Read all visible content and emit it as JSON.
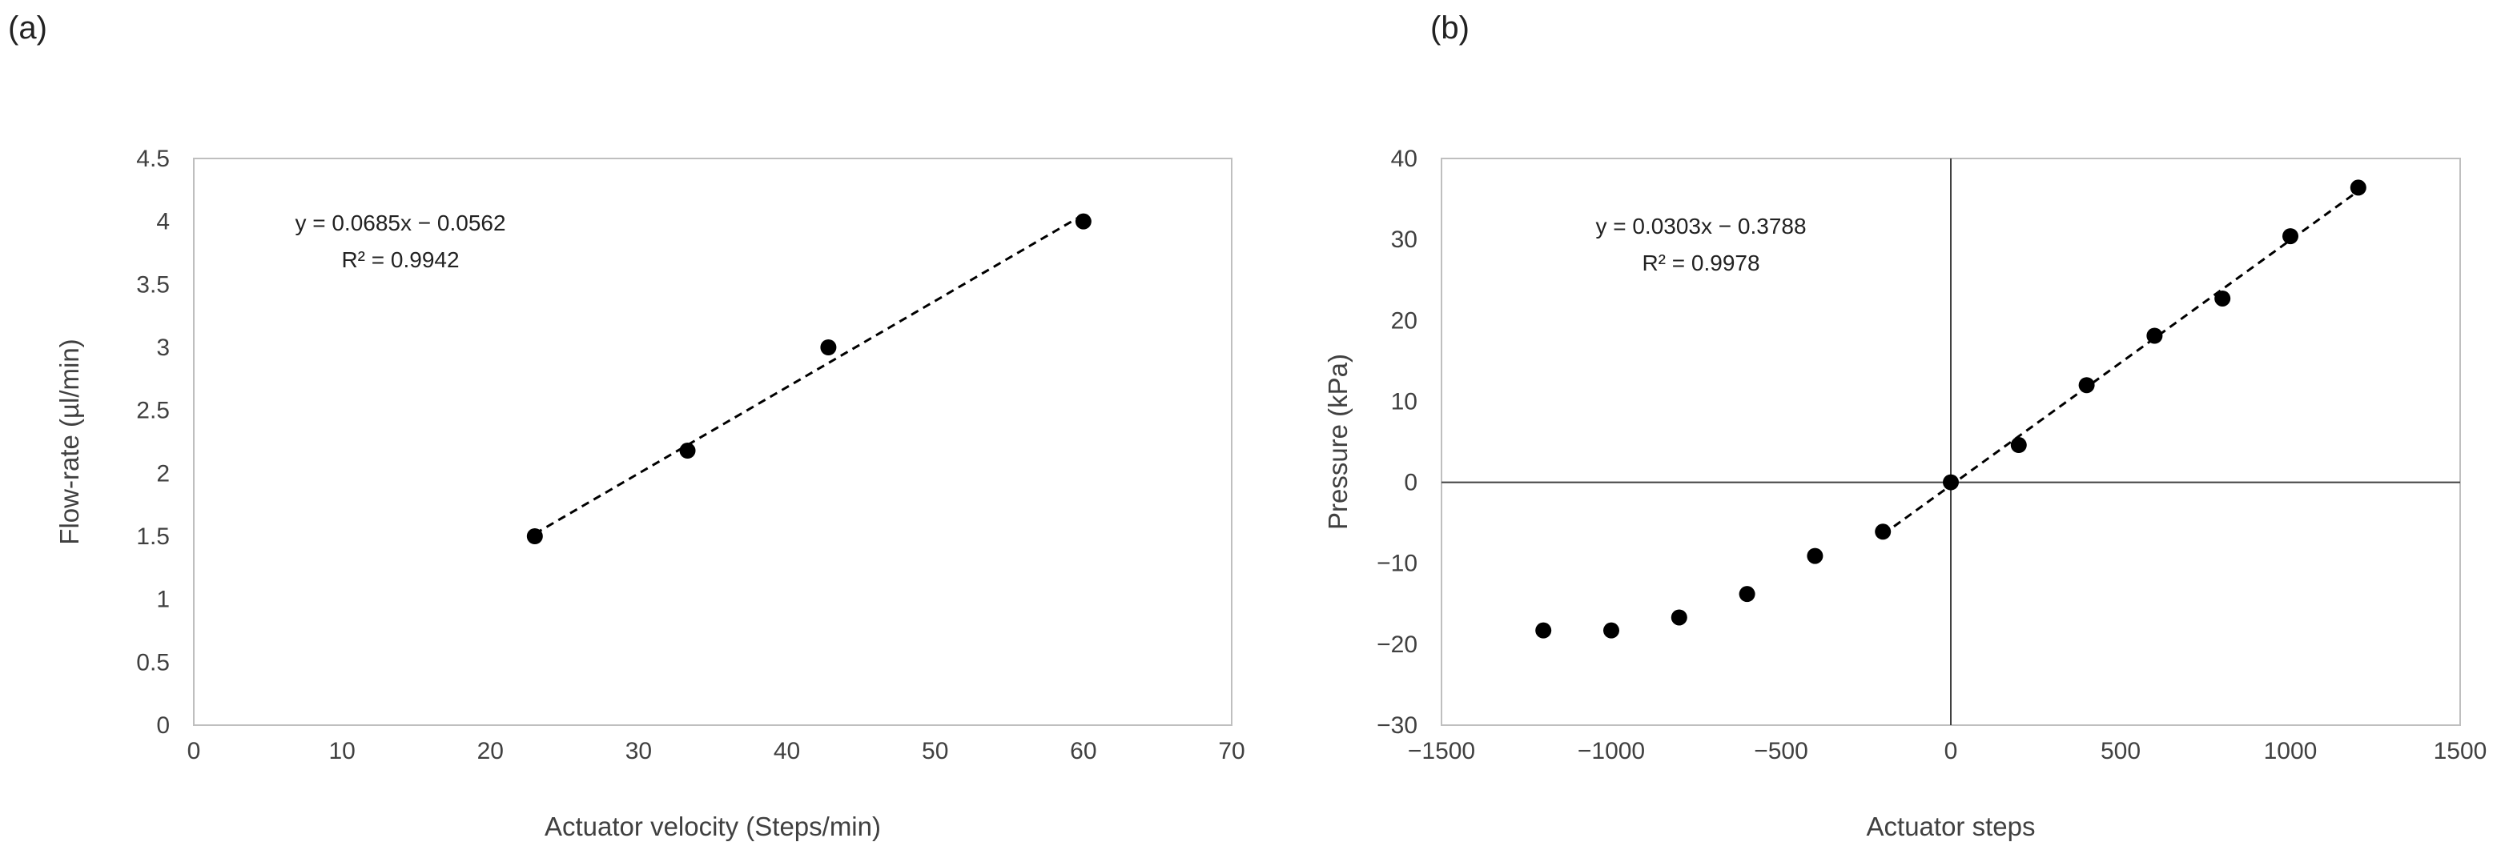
{
  "chart_data": [
    {
      "panel_label": "(a)",
      "type": "scatter",
      "xlabel": "Actuator velocity (Steps/min)",
      "ylabel": "Flow-rate (µl/min)",
      "xlim": [
        0,
        70
      ],
      "ylim": [
        0,
        4.5
      ],
      "xticks": [
        0,
        10,
        20,
        30,
        40,
        50,
        60,
        70
      ],
      "yticks": [
        0,
        0.5,
        1,
        1.5,
        2,
        2.5,
        3,
        3.5,
        4,
        4.5
      ],
      "xtick_labels": [
        "0",
        "10",
        "20",
        "30",
        "40",
        "50",
        "60",
        "70"
      ],
      "ytick_labels": [
        "0",
        "0.5",
        "1",
        "1.5",
        "2",
        "2.5",
        "3",
        "3.5",
        "4",
        "4.5"
      ],
      "grid": false,
      "zero_lines": false,
      "series": [
        {
          "name": "Flow-rate",
          "x": [
            23,
            33.3,
            42.8,
            60
          ],
          "y": [
            1.5,
            2.18,
            3.0,
            4.0
          ]
        }
      ],
      "trendline": {
        "slope": 0.0685,
        "intercept": -0.0562,
        "x_range": [
          23,
          60
        ],
        "style": "dashed",
        "equation": "y = 0.0685x − 0.0562",
        "r2": "R² = 0.9942"
      }
    },
    {
      "panel_label": "(b)",
      "type": "scatter",
      "xlabel": "Actuator steps",
      "ylabel": "Pressure (kPa)",
      "xlim": [
        -1500,
        1500
      ],
      "ylim": [
        -30,
        40
      ],
      "xticks": [
        -1500,
        -1000,
        -500,
        0,
        500,
        1000,
        1500
      ],
      "yticks": [
        -30,
        -20,
        -10,
        0,
        10,
        20,
        30,
        40
      ],
      "xtick_labels": [
        "−1500",
        "−1000",
        "−500",
        "0",
        "500",
        "1000",
        "1500"
      ],
      "ytick_labels": [
        "−30",
        "−20",
        "−10",
        "0",
        "10",
        "20",
        "30",
        "40"
      ],
      "grid": false,
      "zero_lines": true,
      "series": [
        {
          "name": "Pressure",
          "x": [
            -1200,
            -1000,
            -800,
            -600,
            -400,
            -200,
            0,
            200,
            400,
            600,
            800,
            1000,
            1200
          ],
          "y": [
            -18.3,
            -18.3,
            -16.7,
            -13.8,
            -9.1,
            -6.1,
            0,
            4.6,
            12.0,
            18.1,
            22.7,
            30.4,
            36.4
          ]
        }
      ],
      "trendline": {
        "slope": 0.0303,
        "intercept": -0.3788,
        "x_range": [
          -200,
          1200
        ],
        "style": "dashed",
        "equation": "y = 0.0303x − 0.3788",
        "r2": "R² = 0.9978"
      }
    }
  ]
}
